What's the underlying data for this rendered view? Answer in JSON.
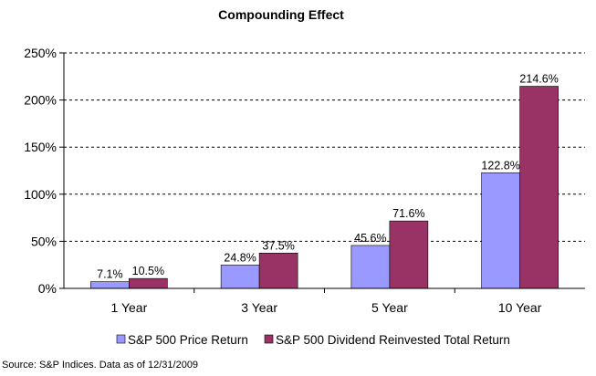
{
  "chart_data": {
    "type": "bar",
    "title": "Compounding Effect",
    "categories": [
      "1 Year",
      "3 Year",
      "5 Year",
      "10 Year"
    ],
    "series": [
      {
        "name": "S&P 500 Price Return",
        "values": [
          7.1,
          24.8,
          45.6,
          122.8
        ],
        "labels": [
          "7.1%",
          "24.8%",
          "45.6%",
          "122.8%"
        ],
        "color": "#9999ff"
      },
      {
        "name": "S&P 500 Dividend Reinvested Total Return",
        "values": [
          10.5,
          37.5,
          71.6,
          214.6
        ],
        "labels": [
          "10.5%",
          "37.5%",
          "71.6%",
          "214.6%"
        ],
        "color": "#993366"
      }
    ],
    "ylim": [
      0,
      250
    ],
    "yticks": [
      "0%",
      "50%",
      "100%",
      "150%",
      "200%",
      "250%"
    ],
    "grid": "dashed horizontal",
    "legend": "bottom"
  },
  "source": "Source:  S&P Indices.  Data as of 12/31/2009"
}
